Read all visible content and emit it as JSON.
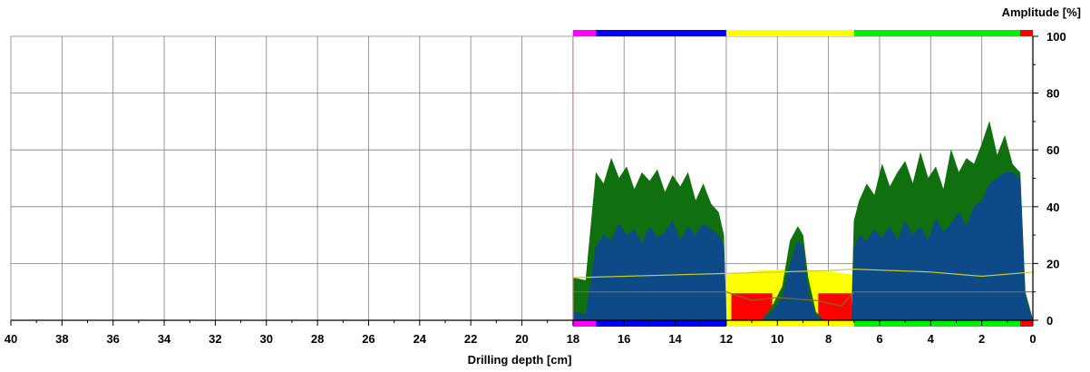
{
  "chart_data": {
    "type": "area",
    "xlabel": "Drilling depth [cm]",
    "ylabel": "Amplitude [%]",
    "xlim": [
      40,
      0
    ],
    "ylim": [
      0,
      100
    ],
    "x_ticks": [
      40,
      38,
      36,
      34,
      32,
      30,
      28,
      26,
      24,
      22,
      20,
      18,
      16,
      14,
      12,
      10,
      8,
      6,
      4,
      2,
      0
    ],
    "y_ticks": [
      0,
      20,
      40,
      60,
      80,
      100
    ],
    "grid": true,
    "measured_range": [
      18,
      0
    ],
    "colors": {
      "feed_amplitude": "#107010",
      "drill_amplitude": "#0d4a87",
      "yellow_zone": "#ffff00",
      "red_zone": "#ff0000",
      "trend_line": "#cccc33",
      "boundary": "#e08080"
    },
    "segments": [
      {
        "from": 18,
        "to": 17.1,
        "color": "#ff00ff"
      },
      {
        "from": 17.1,
        "to": 12,
        "color": "#0000ee"
      },
      {
        "from": 12,
        "to": 7,
        "color": "#ffff00"
      },
      {
        "from": 7,
        "to": 0.5,
        "color": "#00ee00"
      },
      {
        "from": 0.5,
        "to": 0,
        "color": "#ff0000"
      }
    ],
    "series": [
      {
        "type": "area",
        "x": [
          18,
          17.5,
          17.1,
          16.8,
          16.5,
          16.2,
          15.9,
          15.6,
          15.3,
          15,
          14.7,
          14.4,
          14.1,
          13.8,
          13.5,
          13.2,
          12.9,
          12.6,
          12.3,
          12.1,
          12,
          11.9,
          10.6,
          10.2,
          9.8,
          9.5,
          9.2,
          9,
          8.8,
          8.5,
          8.2,
          8,
          7.5,
          7.1,
          7,
          6.8,
          6.5,
          6.2,
          5.9,
          5.6,
          5.3,
          5,
          4.7,
          4.4,
          4.1,
          3.8,
          3.5,
          3.2,
          2.9,
          2.6,
          2.3,
          2,
          1.7,
          1.4,
          1.1,
          0.8,
          0.5,
          0.3,
          0
        ],
        "values": [
          15,
          14,
          52,
          48,
          57,
          50,
          54,
          46,
          52,
          49,
          53,
          45,
          51,
          47,
          52,
          42,
          48,
          41,
          38,
          30,
          0,
          0,
          0,
          5,
          12,
          28,
          33,
          30,
          15,
          3,
          0,
          0,
          0,
          0,
          35,
          42,
          48,
          44,
          55,
          47,
          52,
          56,
          48,
          59,
          50,
          54,
          46,
          60,
          52,
          57,
          55,
          62,
          70,
          58,
          65,
          55,
          52,
          10,
          0
        ]
      },
      {
        "type": "area",
        "x": [
          18,
          17.5,
          17.1,
          16.8,
          16.5,
          16.2,
          15.9,
          15.6,
          15.3,
          15,
          14.7,
          14.4,
          14.1,
          13.8,
          13.5,
          13.2,
          12.9,
          12.6,
          12.3,
          12.1,
          12,
          11.9,
          10.6,
          10.2,
          9.8,
          9.5,
          9.2,
          9,
          8.8,
          8.5,
          8.2,
          8,
          7.5,
          7.1,
          7,
          6.8,
          6.5,
          6.2,
          5.9,
          5.6,
          5.3,
          5,
          4.7,
          4.4,
          4.1,
          3.8,
          3.5,
          3.2,
          2.9,
          2.6,
          2.3,
          2,
          1.7,
          1.4,
          1.1,
          0.8,
          0.5,
          0.3,
          0
        ],
        "values": [
          3,
          2,
          26,
          30,
          28,
          34,
          30,
          32,
          27,
          33,
          29,
          31,
          35,
          28,
          33,
          30,
          34,
          32,
          30,
          26,
          0,
          0,
          0,
          3,
          8,
          20,
          28,
          26,
          10,
          2,
          0,
          0,
          0,
          0,
          25,
          30,
          28,
          32,
          29,
          33,
          28,
          35,
          30,
          33,
          28,
          36,
          31,
          34,
          38,
          33,
          40,
          42,
          48,
          50,
          52,
          52,
          50,
          8,
          0
        ]
      },
      {
        "type": "line",
        "x": [
          18,
          16,
          14,
          12,
          10,
          8,
          7,
          4,
          2,
          0
        ],
        "values": [
          15,
          15.5,
          16,
          16.5,
          17,
          17.5,
          18,
          17,
          15.5,
          17
        ]
      },
      {
        "type": "line",
        "x": [
          18,
          16,
          12,
          11,
          10,
          8.5,
          8,
          7.5,
          7,
          4,
          0
        ],
        "values": [
          10,
          10,
          10,
          7,
          8,
          7,
          6,
          5,
          10,
          10,
          10
        ]
      }
    ],
    "bands": [
      {
        "type": "zone",
        "from": 12,
        "to": 7,
        "values": [
          16,
          17.5,
          18,
          17.5,
          16
        ]
      },
      {
        "type": "block",
        "from": 11.8,
        "to": 10.2,
        "low": 0,
        "high": 9.5
      },
      {
        "type": "block",
        "from": 8.4,
        "to": 7.1,
        "low": 0,
        "high": 9.5
      }
    ]
  }
}
